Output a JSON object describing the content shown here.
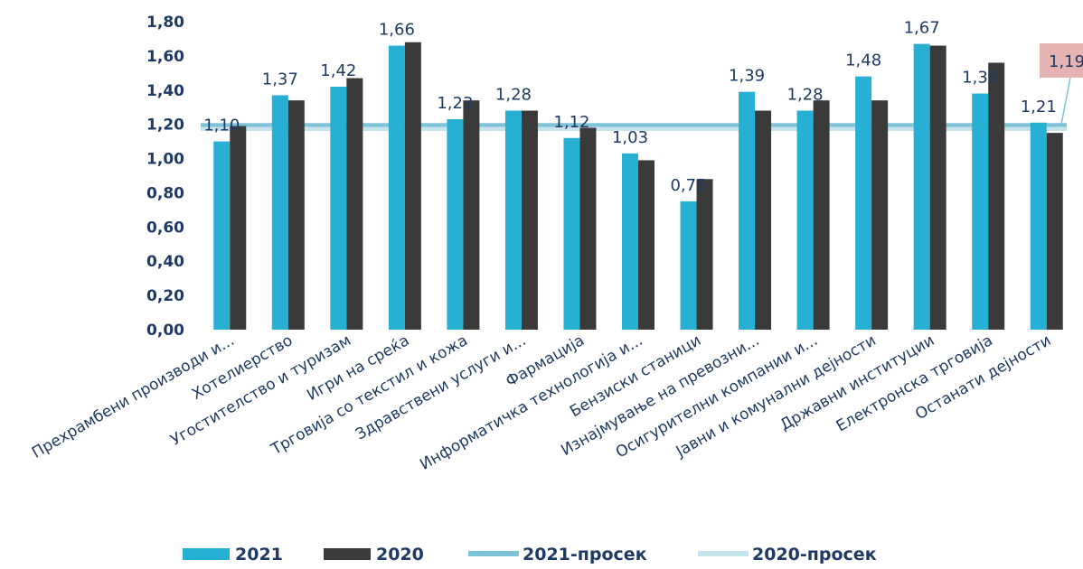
{
  "chart_data": {
    "type": "bar",
    "categories": [
      "Прехрамбени производи и...",
      "Хотелиерство",
      "Угостителство и туризам",
      "Игри на среќа",
      "Трговија со текстил и кожа",
      "Здравствени услуги и...",
      "Фармација",
      "Информатичка технологија и...",
      "Бензиски станици",
      "Изнајмување на превозни...",
      "Осигурителни компании и...",
      "Јавни и комунални дејности",
      "Државни институции",
      "Електронска трговија",
      "Останати дејности"
    ],
    "series": [
      {
        "name": "2021",
        "color": "#27b0d3",
        "values": [
          1.1,
          1.37,
          1.42,
          1.66,
          1.23,
          1.28,
          1.12,
          1.03,
          0.75,
          1.39,
          1.28,
          1.48,
          1.67,
          1.38,
          1.21
        ]
      },
      {
        "name": "2020",
        "color": "#3a3a3a",
        "values": [
          1.19,
          1.34,
          1.47,
          1.68,
          1.34,
          1.28,
          1.18,
          0.99,
          0.88,
          1.28,
          1.34,
          1.34,
          1.66,
          1.56,
          1.15
        ]
      }
    ],
    "data_labels": [
      "1,10",
      "1,37",
      "1,42",
      "1,66",
      "1,23",
      "1,28",
      "1,12",
      "1,03",
      "0,75",
      "1,39",
      "1,28",
      "1,48",
      "1,67",
      "1,38",
      "1,21"
    ],
    "averages": [
      {
        "name": "2021-просек",
        "value": 1.19,
        "label": "1,19",
        "color": "#7fc3d9"
      },
      {
        "name": "2020-просек",
        "value": 1.19,
        "color": "#c7e3ec"
      }
    ],
    "yticks": [
      "0,00",
      "0,20",
      "0,40",
      "0,60",
      "0,80",
      "1,00",
      "1,20",
      "1,40",
      "1,60",
      "1,80"
    ],
    "ylim": [
      0,
      1.8
    ],
    "grid": false,
    "legend_position": "bottom",
    "title": "",
    "xlabel": "",
    "ylabel": ""
  }
}
